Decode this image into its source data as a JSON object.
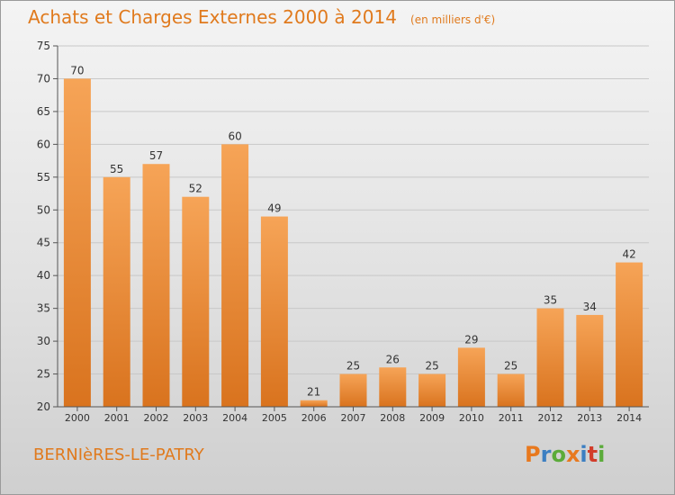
{
  "header": {
    "title": "Achats et Charges Externes 2000 à 2014",
    "subtitle": "(en milliers d'€)"
  },
  "footer": {
    "place": "BERNIèRES-LE-PATRY",
    "logo": "Proxiti",
    "logo_colors": [
      "#e8791e",
      "#3c7fc2",
      "#5bab3a",
      "#e8791e",
      "#3c7fc2",
      "#d23c2a",
      "#5bab3a"
    ]
  },
  "colors": {
    "bar_light": "#f6a457",
    "bar_dark": "#d9731e",
    "grid": "#c8c8c8",
    "axis": "#555555",
    "text": "#e07a1d"
  },
  "chart_data": {
    "type": "bar",
    "categories": [
      "2000",
      "2001",
      "2002",
      "2003",
      "2004",
      "2005",
      "2006",
      "2007",
      "2008",
      "2009",
      "2010",
      "2011",
      "2012",
      "2013",
      "2014"
    ],
    "values": [
      70,
      55,
      57,
      52,
      60,
      49,
      21,
      25,
      26,
      25,
      29,
      25,
      35,
      34,
      42
    ],
    "title": "Achats et Charges Externes 2000 à 2014",
    "subtitle": "(en milliers d'€)",
    "ylim": [
      20,
      75
    ],
    "yticks": [
      20,
      25,
      30,
      35,
      40,
      45,
      50,
      55,
      60,
      65,
      70,
      75
    ],
    "grid": true,
    "data_labels": true
  }
}
